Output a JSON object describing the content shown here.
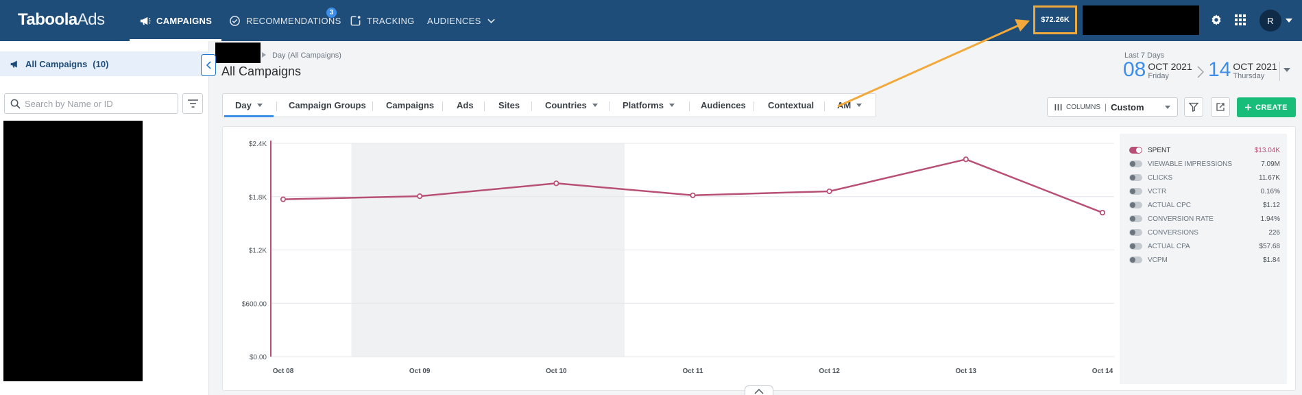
{
  "brand": {
    "logo_bold": "Taboola",
    "logo_light": "Ads"
  },
  "nav": [
    {
      "label": "CAMPAIGNS",
      "active": true
    },
    {
      "label": "RECOMMENDATIONS",
      "badge": "3"
    },
    {
      "label": "TRACKING"
    },
    {
      "label": "AUDIENCES"
    }
  ],
  "header_right": {
    "balance": "$72.26K",
    "avatar_initial": "R"
  },
  "sidebar": {
    "all_campaigns_label": "All Campaigns",
    "all_campaigns_count": "(10)",
    "search_placeholder": "Search by Name or ID"
  },
  "main": {
    "breadcrumb": "Day (All Campaigns)",
    "title": "All Campaigns",
    "date_range": {
      "label": "Last 7 Days",
      "start": {
        "day": "08",
        "month": "OCT 2021",
        "weekday": "Friday"
      },
      "end": {
        "day": "14",
        "month": "OCT 2021",
        "weekday": "Thursday"
      }
    },
    "tabs": [
      {
        "label": "Day",
        "dropdown": true,
        "active": true
      },
      {
        "label": "Campaign Groups"
      },
      {
        "label": "Campaigns"
      },
      {
        "label": "Ads"
      },
      {
        "label": "Sites"
      },
      {
        "label": "Countries",
        "dropdown": true
      },
      {
        "label": "Platforms",
        "dropdown": true
      },
      {
        "label": "Audiences"
      },
      {
        "label": "Contextual"
      },
      {
        "label": "AM",
        "dropdown": true
      }
    ],
    "toolbar": {
      "columns_label": "COLUMNS",
      "columns_value": "Custom",
      "create_label": "CREATE"
    }
  },
  "chart_data": {
    "type": "line",
    "categories": [
      "Oct 08",
      "Oct 09",
      "Oct 10",
      "Oct 11",
      "Oct 12",
      "Oct 13",
      "Oct 14"
    ],
    "yticks": [
      "$0.00",
      "$600.00",
      "$1.2K",
      "$1.8K",
      "$2.4K"
    ],
    "ylim": [
      0,
      2400
    ],
    "series": [
      {
        "name": "SPENT",
        "values": [
          1770,
          1805,
          1950,
          1815,
          1860,
          2220,
          1620
        ],
        "color": "#b84f74"
      }
    ],
    "weekend_band": [
      "Oct 09",
      "Oct 11"
    ],
    "grid": true
  },
  "legend": [
    {
      "label": "SPENT",
      "value": "$13.04K",
      "on": true
    },
    {
      "label": "VIEWABLE IMPRESSIONS",
      "value": "7.09M"
    },
    {
      "label": "CLICKS",
      "value": "11.67K"
    },
    {
      "label": "VCTR",
      "value": "0.16%"
    },
    {
      "label": "ACTUAL CPC",
      "value": "$1.12"
    },
    {
      "label": "CONVERSION RATE",
      "value": "1.94%"
    },
    {
      "label": "CONVERSIONS",
      "value": "226"
    },
    {
      "label": "ACTUAL CPA",
      "value": "$57.68"
    },
    {
      "label": "VCPM",
      "value": "$1.84"
    }
  ],
  "colors": {
    "nav_bg": "#1e4d79",
    "accent": "#3d8ee8",
    "create": "#19bd7a",
    "series": "#b84f74",
    "annotation": "#f2a93b"
  }
}
